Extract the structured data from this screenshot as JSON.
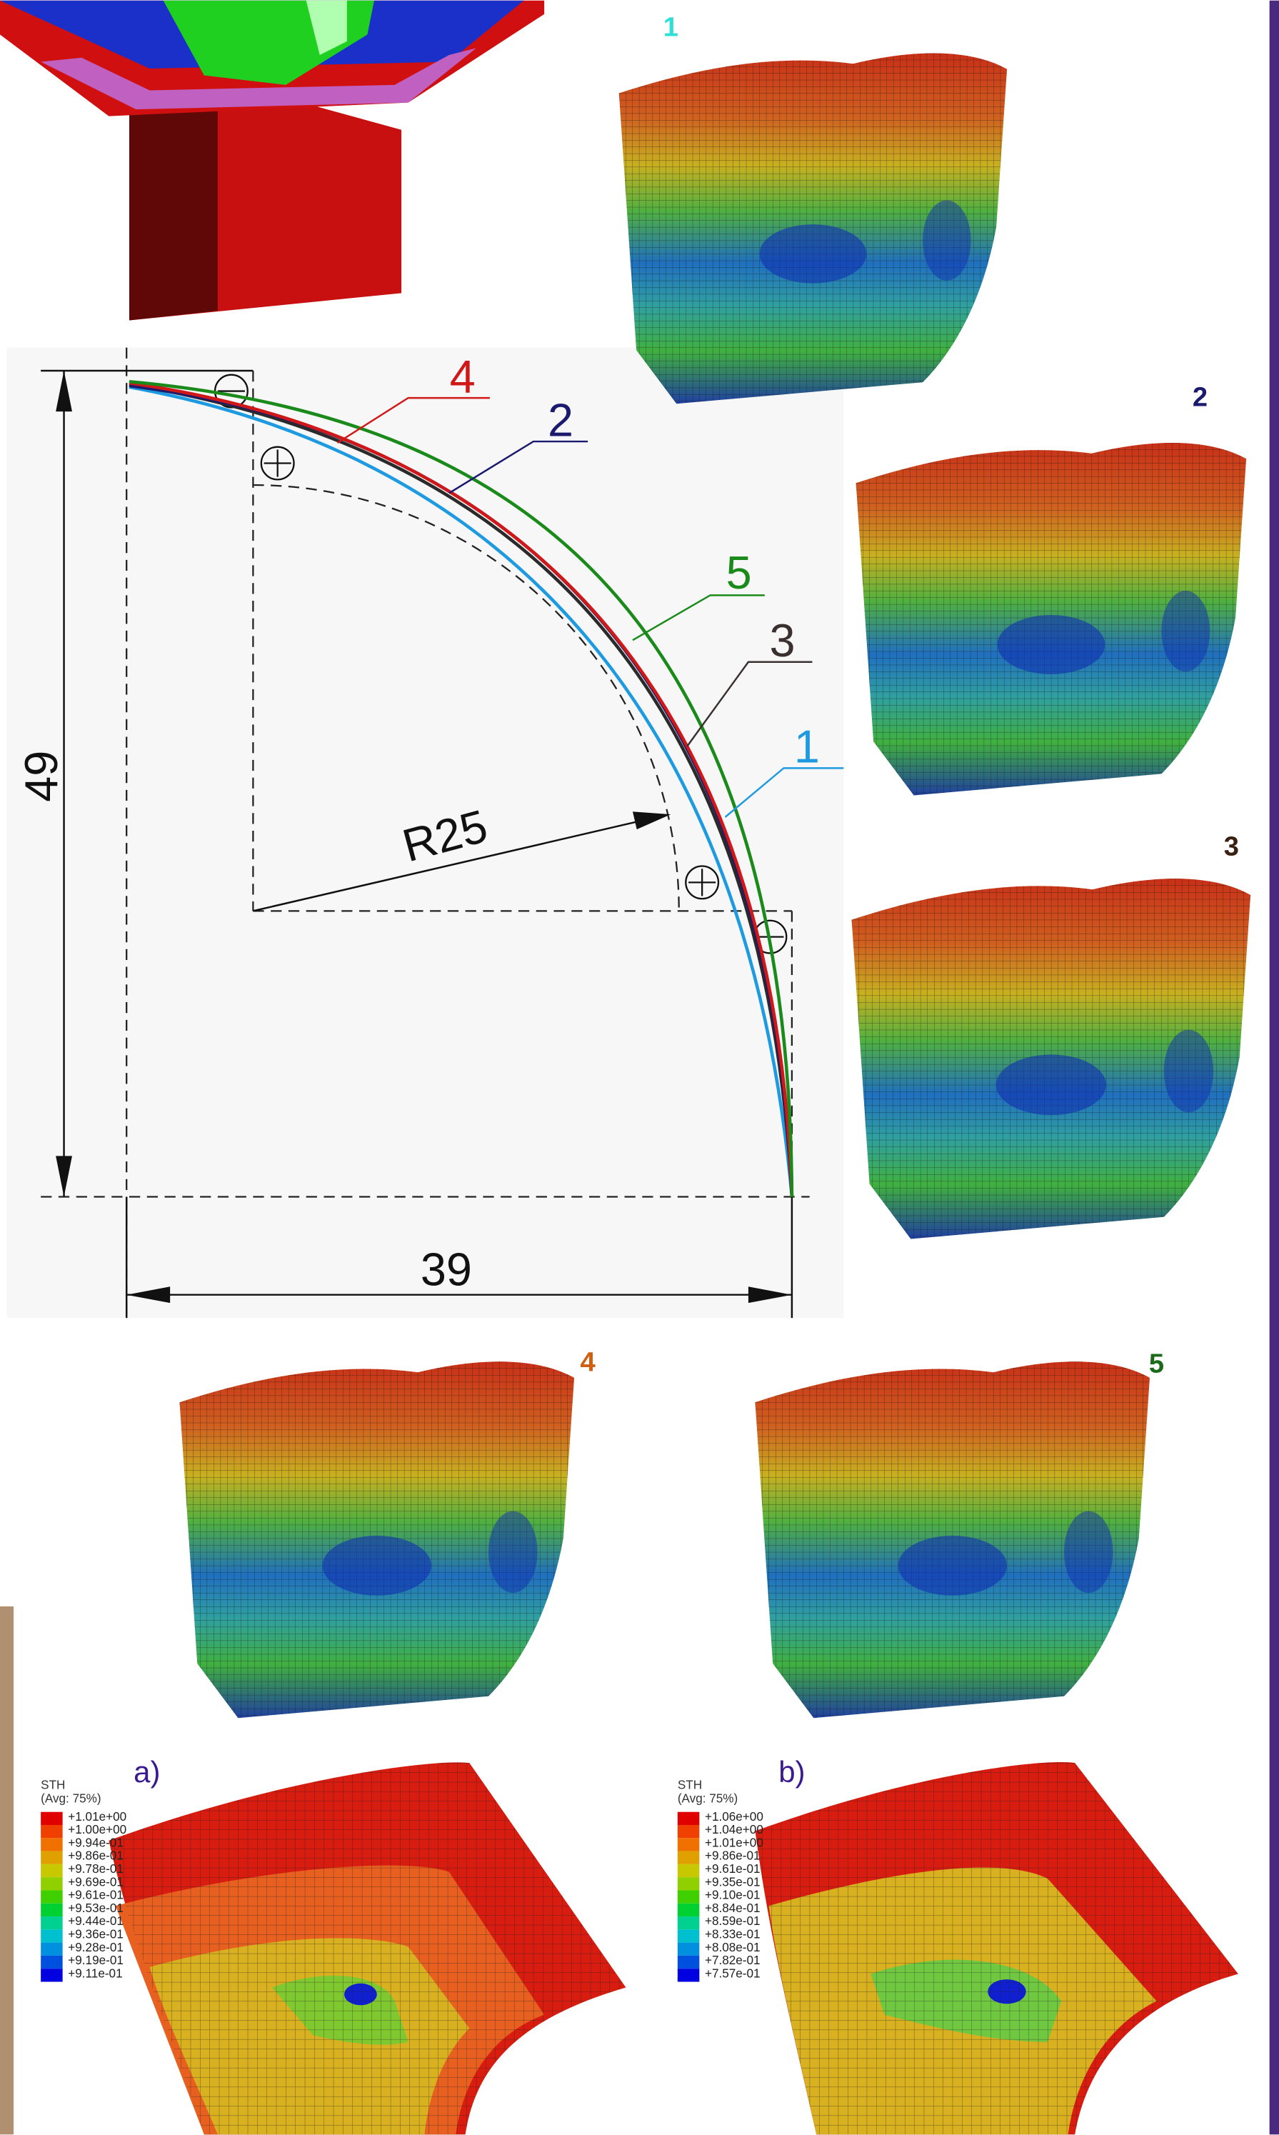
{
  "mesh_views": [
    {
      "label": "1"
    },
    {
      "label": "2"
    },
    {
      "label": "3"
    },
    {
      "label": "4"
    },
    {
      "label": "5"
    }
  ],
  "profile_drawing": {
    "curve_labels": [
      "4",
      "2",
      "5",
      "3",
      "1"
    ],
    "dimensions": {
      "height": "49",
      "width": "39",
      "radius": "R25"
    }
  },
  "contour_plots": [
    {
      "label": "a)",
      "legend": {
        "title": "STH",
        "subtitle": "(Avg: 75%)",
        "values": [
          "+1.01e+00",
          "+1.00e+00",
          "+9.94e-01",
          "+9.86e-01",
          "+9.78e-01",
          "+9.69e-01",
          "+9.61e-01",
          "+9.53e-01",
          "+9.44e-01",
          "+9.36e-01",
          "+9.28e-01",
          "+9.19e-01",
          "+9.11e-01"
        ]
      }
    },
    {
      "label": "b)",
      "legend": {
        "title": "STH",
        "subtitle": "(Avg: 75%)",
        "values": [
          "+1.06e+00",
          "+1.04e+00",
          "+1.01e+00",
          "+9.86e-01",
          "+9.61e-01",
          "+9.35e-01",
          "+9.10e-01",
          "+8.84e-01",
          "+8.59e-01",
          "+8.33e-01",
          "+8.08e-01",
          "+7.82e-01",
          "+7.57e-01"
        ]
      }
    }
  ]
}
